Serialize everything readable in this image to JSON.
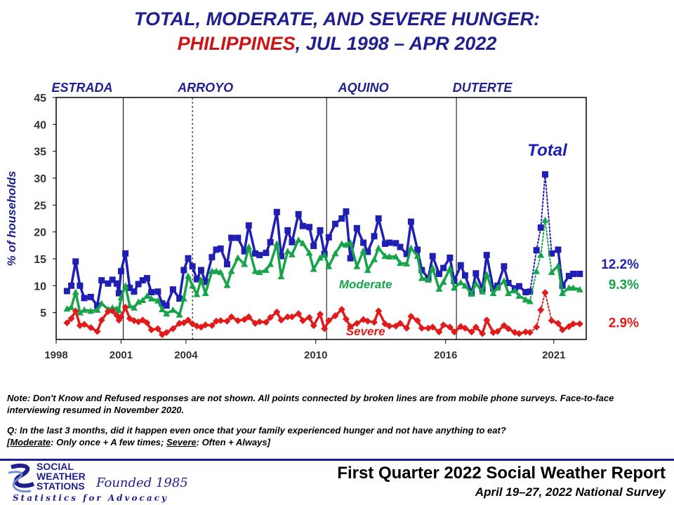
{
  "title": {
    "line1": "TOTAL, MODERATE, AND SEVERE HUNGER:",
    "line2_country": "PHILIPPINES",
    "line2_rest": ", JUL 1998 – APR 2022"
  },
  "colors": {
    "total": "#1f1fb4",
    "moderate": "#16a34a",
    "severe": "#e01b1b",
    "title": "#1f1f8f"
  },
  "chart_data": {
    "type": "line",
    "ylabel": "% of households",
    "ylim": [
      0,
      45
    ],
    "yticks": [
      5,
      10,
      15,
      20,
      25,
      30,
      35,
      40,
      45
    ],
    "xlim": [
      1998,
      2022.5
    ],
    "xticks": [
      1998,
      2001,
      2004,
      2010,
      2016,
      2021
    ],
    "grid": false,
    "presidencies": [
      {
        "name": "ESTRADA",
        "label_x": 1999.2
      },
      {
        "name": "ARROYO",
        "label_x": 2004.9
      },
      {
        "name": "AQUINO",
        "label_x": 2012.2
      },
      {
        "name": "DUTERTE",
        "label_x": 2017.7
      }
    ],
    "dividers": [
      {
        "x": 2001.1,
        "style": "solid"
      },
      {
        "x": 2004.3,
        "style": "dashed"
      },
      {
        "x": 2010.5,
        "style": "solid"
      },
      {
        "x": 2016.5,
        "style": "solid"
      }
    ],
    "annotations": [
      {
        "text": "Total",
        "x": 2020.7,
        "y": 34.2,
        "series": "total"
      },
      {
        "text": "Moderate",
        "x": 2012.3,
        "y": 9.5,
        "series": "moderate"
      },
      {
        "text": "Severe",
        "x": 2012.3,
        "y": 0.8,
        "series": "severe"
      }
    ],
    "end_labels": [
      {
        "text": "12.2%",
        "series": "total",
        "y": 13.2
      },
      {
        "text": "9.3%",
        "series": "moderate",
        "y": 9.4
      },
      {
        "text": "2.9%",
        "series": "severe",
        "y": 2.3
      }
    ],
    "mobile_phone_period": [
      2020.0,
      2020.9
    ],
    "series": [
      {
        "name": "Total",
        "key": "total",
        "x": [
          1998.5,
          1998.7,
          1998.9,
          1999.1,
          1999.3,
          1999.6,
          1999.9,
          2000.1,
          2000.4,
          2000.6,
          2000.8,
          2000.9,
          2001.0,
          2001.2,
          2001.4,
          2001.6,
          2001.8,
          2002.0,
          2002.2,
          2002.4,
          2002.7,
          2002.9,
          2003.1,
          2003.4,
          2003.7,
          2003.9,
          2004.1,
          2004.3,
          2004.5,
          2004.7,
          2004.9,
          2005.2,
          2005.4,
          2005.6,
          2005.9,
          2006.1,
          2006.4,
          2006.7,
          2006.9,
          2007.2,
          2007.4,
          2007.7,
          2007.9,
          2008.2,
          2008.4,
          2008.7,
          2008.9,
          2009.2,
          2009.4,
          2009.7,
          2009.9,
          2010.2,
          2010.4,
          2010.6,
          2010.9,
          2011.2,
          2011.4,
          2011.6,
          2011.9,
          2012.2,
          2012.4,
          2012.7,
          2012.9,
          2013.2,
          2013.4,
          2013.7,
          2013.9,
          2014.2,
          2014.4,
          2014.7,
          2014.9,
          2015.2,
          2015.4,
          2015.7,
          2015.9,
          2016.2,
          2016.4,
          2016.7,
          2016.9,
          2017.2,
          2017.4,
          2017.7,
          2017.9,
          2018.2,
          2018.4,
          2018.7,
          2018.9,
          2019.2,
          2019.4,
          2019.7,
          2019.9,
          2020.2,
          2020.4,
          2020.6,
          2020.9,
          2021.2,
          2021.4,
          2021.7,
          2021.9,
          2022.2
        ],
        "values": [
          9.0,
          10.0,
          14.5,
          10.0,
          7.7,
          7.9,
          6.3,
          11.0,
          10.4,
          11.1,
          10.4,
          8.6,
          12.7,
          16.0,
          9.6,
          8.9,
          10.3,
          11.0,
          11.4,
          8.8,
          8.9,
          6.7,
          6.3,
          9.3,
          7.6,
          12.9,
          15.1,
          13.6,
          11.2,
          12.9,
          10.7,
          15.3,
          16.7,
          16.9,
          14.0,
          18.9,
          18.9,
          16.4,
          21.2,
          16.0,
          15.7,
          16.1,
          18.1,
          23.7,
          15.5,
          20.3,
          18.1,
          23.3,
          21.1,
          20.9,
          17.4,
          20.3,
          15.9,
          19.0,
          21.5,
          22.5,
          23.8,
          15.1,
          20.7,
          18.0,
          16.3,
          19.2,
          22.5,
          17.8,
          18.0,
          17.9,
          17.2,
          15.9,
          21.9,
          16.7,
          12.9,
          11.4,
          15.5,
          12.2,
          13.3,
          15.2,
          10.9,
          13.8,
          11.9,
          8.6,
          12.3,
          9.4,
          15.7,
          9.5,
          10.0,
          13.6,
          10.5,
          9.5,
          9.9,
          8.8,
          8.9,
          16.6,
          20.8,
          30.7,
          16.0,
          16.7,
          10.0,
          11.8,
          12.2,
          12.2
        ]
      },
      {
        "name": "Moderate",
        "key": "moderate",
        "x": [
          1998.5,
          1998.7,
          1998.9,
          1999.1,
          1999.3,
          1999.6,
          1999.9,
          2000.1,
          2000.4,
          2000.6,
          2000.8,
          2000.9,
          2001.0,
          2001.2,
          2001.4,
          2001.6,
          2001.8,
          2002.0,
          2002.2,
          2002.4,
          2002.7,
          2002.9,
          2003.1,
          2003.4,
          2003.7,
          2003.9,
          2004.1,
          2004.3,
          2004.5,
          2004.7,
          2004.9,
          2005.2,
          2005.4,
          2005.6,
          2005.9,
          2006.1,
          2006.4,
          2006.7,
          2006.9,
          2007.2,
          2007.4,
          2007.7,
          2007.9,
          2008.2,
          2008.4,
          2008.7,
          2008.9,
          2009.2,
          2009.4,
          2009.7,
          2009.9,
          2010.2,
          2010.4,
          2010.6,
          2010.9,
          2011.2,
          2011.4,
          2011.6,
          2011.9,
          2012.2,
          2012.4,
          2012.7,
          2012.9,
          2013.2,
          2013.4,
          2013.7,
          2013.9,
          2014.2,
          2014.4,
          2014.7,
          2014.9,
          2015.2,
          2015.4,
          2015.7,
          2015.9,
          2016.2,
          2016.4,
          2016.7,
          2016.9,
          2017.2,
          2017.4,
          2017.7,
          2017.9,
          2018.2,
          2018.4,
          2018.7,
          2018.9,
          2019.2,
          2019.4,
          2019.7,
          2019.9,
          2020.2,
          2020.4,
          2020.6,
          2020.9,
          2021.2,
          2021.4,
          2021.7,
          2021.9,
          2022.2
        ],
        "values": [
          5.7,
          6.0,
          8.8,
          5.0,
          5.5,
          5.3,
          5.5,
          6.7,
          5.6,
          5.9,
          5.7,
          5.4,
          7.8,
          10.0,
          6.3,
          5.9,
          7.0,
          7.3,
          8.1,
          7.6,
          7.2,
          5.6,
          4.8,
          5.5,
          4.6,
          7.6,
          11.8,
          10.0,
          8.4,
          11.1,
          8.6,
          12.7,
          12.7,
          12.5,
          10.1,
          12.7,
          15.2,
          14.0,
          17.2,
          12.7,
          12.5,
          12.9,
          14.0,
          17.8,
          11.7,
          16.4,
          15.8,
          18.5,
          17.9,
          16.1,
          13.1,
          15.2,
          15.7,
          13.6,
          16.0,
          17.8,
          17.6,
          18.0,
          13.6,
          16.5,
          12.9,
          14.9,
          17.0,
          15.5,
          15.4,
          15.4,
          14.2,
          14.1,
          17.0,
          15.5,
          11.4,
          11.1,
          13.3,
          9.4,
          10.7,
          13.2,
          9.6,
          10.6,
          10.0,
          8.5,
          10.4,
          8.9,
          12.1,
          8.6,
          9.6,
          10.9,
          8.6,
          9.1,
          8.1,
          7.4,
          7.1,
          12.7,
          15.7,
          22.2,
          12.5,
          13.7,
          8.6,
          9.6,
          9.6,
          9.3
        ]
      },
      {
        "name": "Severe",
        "key": "severe",
        "x": [
          1998.5,
          1998.7,
          1998.9,
          1999.1,
          1999.3,
          1999.6,
          1999.9,
          2000.1,
          2000.4,
          2000.6,
          2000.8,
          2000.9,
          2001.0,
          2001.2,
          2001.4,
          2001.6,
          2001.8,
          2002.0,
          2002.2,
          2002.4,
          2002.7,
          2002.9,
          2003.1,
          2003.4,
          2003.7,
          2003.9,
          2004.1,
          2004.3,
          2004.5,
          2004.7,
          2004.9,
          2005.2,
          2005.4,
          2005.6,
          2005.9,
          2006.1,
          2006.4,
          2006.7,
          2006.9,
          2007.2,
          2007.4,
          2007.7,
          2007.9,
          2008.2,
          2008.4,
          2008.7,
          2008.9,
          2009.2,
          2009.4,
          2009.7,
          2009.9,
          2010.2,
          2010.4,
          2010.6,
          2010.9,
          2011.2,
          2011.4,
          2011.6,
          2011.9,
          2012.2,
          2012.4,
          2012.7,
          2012.9,
          2013.2,
          2013.4,
          2013.7,
          2013.9,
          2014.2,
          2014.4,
          2014.7,
          2014.9,
          2015.2,
          2015.4,
          2015.7,
          2015.9,
          2016.2,
          2016.4,
          2016.7,
          2016.9,
          2017.2,
          2017.4,
          2017.7,
          2017.9,
          2018.2,
          2018.4,
          2018.7,
          2018.9,
          2019.2,
          2019.4,
          2019.7,
          2019.9,
          2020.2,
          2020.4,
          2020.6,
          2020.9,
          2021.2,
          2021.4,
          2021.7,
          2021.9,
          2022.2
        ],
        "values": [
          3.1,
          3.9,
          5.3,
          2.6,
          2.8,
          2.2,
          1.5,
          3.6,
          5.2,
          5.3,
          4.5,
          3.6,
          4.2,
          6.0,
          3.9,
          3.5,
          3.3,
          3.6,
          3.1,
          1.8,
          2.0,
          0.9,
          1.3,
          2.0,
          3.0,
          3.1,
          3.6,
          2.9,
          2.5,
          2.3,
          2.7,
          2.6,
          3.4,
          3.5,
          3.4,
          4.2,
          3.5,
          3.7,
          4.2,
          3.0,
          3.3,
          3.2,
          4.1,
          5.1,
          3.6,
          4.2,
          4.2,
          4.8,
          3.5,
          4.1,
          2.6,
          4.7,
          2.0,
          3.5,
          4.4,
          5.6,
          3.8,
          2.4,
          3.0,
          3.7,
          3.4,
          3.2,
          5.3,
          2.9,
          2.5,
          2.5,
          3.0,
          2.1,
          4.3,
          3.5,
          2.1,
          2.1,
          2.3,
          1.4,
          2.7,
          2.3,
          1.4,
          2.4,
          2.1,
          1.4,
          2.3,
          1.1,
          3.6,
          1.3,
          1.5,
          2.6,
          2.0,
          1.3,
          1.1,
          1.4,
          1.3,
          2.3,
          5.5,
          8.7,
          3.5,
          3.0,
          1.8,
          2.4,
          2.9,
          2.9
        ]
      }
    ]
  },
  "notes": {
    "note1": "Note: Don't Know and Refused responses are not shown. All points connected by broken lines are from mobile phone surveys. Face-to-face  interviewing resumed in November 2020.",
    "q_prefix": "Q: In the last 3 months, did it happen even once that your family experienced hunger and not have anything to eat?",
    "open_bracket": "[",
    "moderate_term": "Moderate",
    "moderate_def": ": Only once + A few times; ",
    "severe_term": "Severe",
    "severe_def": ": Often + Always]"
  },
  "footer": {
    "org_line1": "SOCIAL",
    "org_line2": "WEATHER",
    "org_line3": "STATIONS",
    "founded": "Founded 1985",
    "tagline": "Statistics for Advocacy",
    "report": "First Quarter 2022 Social Weather Report",
    "survey": "April 19–27, 2022 National Survey"
  }
}
